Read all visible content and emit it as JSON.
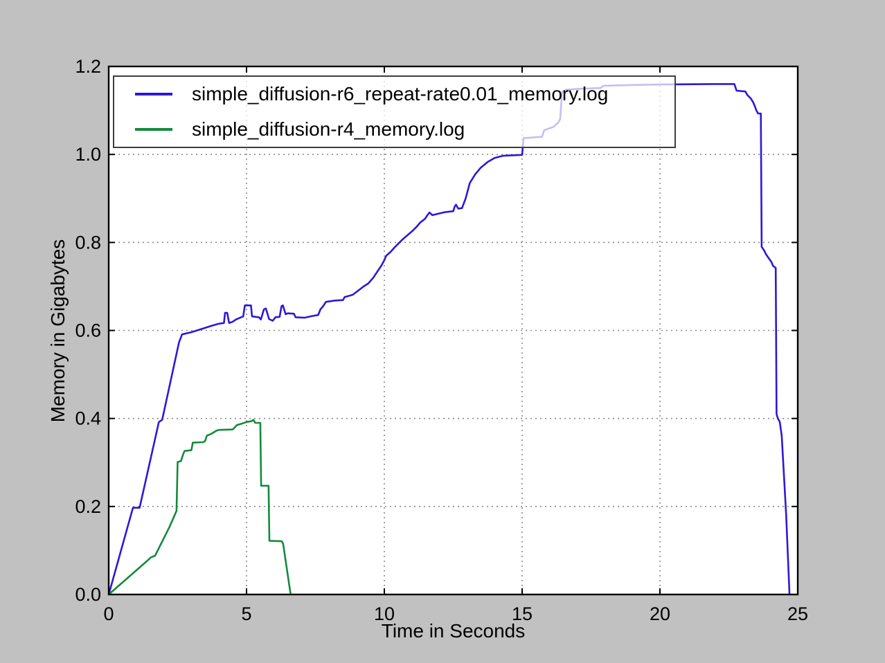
{
  "figure": {
    "background_color": "#c1c1c1",
    "plot_background_color": "#ffffff",
    "spine_color": "#000000",
    "grid_color": "#8a8a8a",
    "legend_border_color": "#3d3d3d"
  },
  "chart_data": {
    "type": "line",
    "title": "",
    "xlabel": "Time in Seconds",
    "ylabel": "Memory in Gigabytes",
    "xlim": [
      0,
      25
    ],
    "ylim": [
      0,
      1.2
    ],
    "xticks": {
      "values": [
        0,
        5,
        10,
        15,
        20,
        25
      ],
      "labels": [
        "0",
        "5",
        "10",
        "15",
        "20",
        "25"
      ]
    },
    "yticks": {
      "values": [
        0,
        0.2,
        0.4,
        0.6,
        0.8,
        1.0,
        1.2
      ],
      "labels": [
        "0.0",
        "0.2",
        "0.4",
        "0.6",
        "0.8",
        "1.0",
        "1.2"
      ]
    },
    "grid": "dotted",
    "legend_position": "upper left",
    "series": [
      {
        "name": "simple_diffusion-r6_repeat-rate0.01_memory.log",
        "color": "#2d18d8",
        "points": [
          [
            0,
            0
          ],
          [
            0.88,
            0.197
          ],
          [
            1.12,
            0.197
          ],
          [
            1.82,
            0.392
          ],
          [
            1.94,
            0.397
          ],
          [
            2.55,
            0.573
          ],
          [
            2.66,
            0.591
          ],
          [
            3.0,
            0.596
          ],
          [
            3.35,
            0.603
          ],
          [
            3.7,
            0.61
          ],
          [
            3.97,
            0.615
          ],
          [
            4.18,
            0.617
          ],
          [
            4.22,
            0.64
          ],
          [
            4.3,
            0.64
          ],
          [
            4.37,
            0.617
          ],
          [
            4.5,
            0.62
          ],
          [
            4.62,
            0.625
          ],
          [
            4.88,
            0.632
          ],
          [
            4.94,
            0.657
          ],
          [
            5.16,
            0.657
          ],
          [
            5.2,
            0.632
          ],
          [
            5.45,
            0.63
          ],
          [
            5.52,
            0.625
          ],
          [
            5.63,
            0.648
          ],
          [
            5.7,
            0.65
          ],
          [
            5.82,
            0.626
          ],
          [
            5.95,
            0.622
          ],
          [
            6.05,
            0.63
          ],
          [
            6.2,
            0.631
          ],
          [
            6.27,
            0.655
          ],
          [
            6.32,
            0.657
          ],
          [
            6.42,
            0.637
          ],
          [
            6.5,
            0.639
          ],
          [
            6.72,
            0.638
          ],
          [
            6.78,
            0.63
          ],
          [
            7.1,
            0.629
          ],
          [
            7.4,
            0.633
          ],
          [
            7.6,
            0.635
          ],
          [
            7.68,
            0.648
          ],
          [
            7.78,
            0.655
          ],
          [
            7.88,
            0.665
          ],
          [
            8.2,
            0.668
          ],
          [
            8.5,
            0.669
          ],
          [
            8.56,
            0.676
          ],
          [
            8.85,
            0.681
          ],
          [
            9.0,
            0.688
          ],
          [
            9.25,
            0.7
          ],
          [
            9.42,
            0.707
          ],
          [
            9.6,
            0.72
          ],
          [
            9.76,
            0.735
          ],
          [
            9.9,
            0.748
          ],
          [
            10.0,
            0.76
          ],
          [
            10.07,
            0.77
          ],
          [
            10.22,
            0.778
          ],
          [
            10.36,
            0.788
          ],
          [
            10.52,
            0.798
          ],
          [
            10.68,
            0.808
          ],
          [
            10.85,
            0.817
          ],
          [
            11.0,
            0.825
          ],
          [
            11.16,
            0.835
          ],
          [
            11.3,
            0.845
          ],
          [
            11.48,
            0.854
          ],
          [
            11.56,
            0.862
          ],
          [
            11.64,
            0.868
          ],
          [
            11.74,
            0.862
          ],
          [
            12.0,
            0.866
          ],
          [
            12.2,
            0.869
          ],
          [
            12.5,
            0.871
          ],
          [
            12.55,
            0.881
          ],
          [
            12.6,
            0.886
          ],
          [
            12.68,
            0.877
          ],
          [
            12.82,
            0.878
          ],
          [
            12.95,
            0.9
          ],
          [
            13.1,
            0.935
          ],
          [
            13.3,
            0.955
          ],
          [
            13.5,
            0.97
          ],
          [
            13.75,
            0.983
          ],
          [
            14.0,
            0.992
          ],
          [
            14.3,
            0.997
          ],
          [
            15.0,
            0.999
          ],
          [
            15.05,
            1.037
          ],
          [
            15.72,
            1.04
          ],
          [
            15.8,
            1.055
          ],
          [
            16.15,
            1.063
          ],
          [
            16.3,
            1.072
          ],
          [
            16.38,
            1.08
          ],
          [
            16.45,
            1.142
          ],
          [
            16.6,
            1.147
          ],
          [
            17.0,
            1.149
          ],
          [
            17.85,
            1.151
          ],
          [
            17.95,
            1.156
          ],
          [
            18.5,
            1.157
          ],
          [
            20.0,
            1.159
          ],
          [
            22.0,
            1.16
          ],
          [
            22.7,
            1.16
          ],
          [
            22.78,
            1.145
          ],
          [
            23.1,
            1.143
          ],
          [
            23.17,
            1.135
          ],
          [
            23.3,
            1.127
          ],
          [
            23.38,
            1.119
          ],
          [
            23.44,
            1.11
          ],
          [
            23.5,
            1.1
          ],
          [
            23.56,
            1.093
          ],
          [
            23.66,
            1.093
          ],
          [
            23.69,
            0.79
          ],
          [
            23.78,
            0.782
          ],
          [
            23.85,
            0.773
          ],
          [
            23.95,
            0.764
          ],
          [
            24.05,
            0.755
          ],
          [
            24.1,
            0.747
          ],
          [
            24.2,
            0.742
          ],
          [
            24.23,
            0.41
          ],
          [
            24.28,
            0.4
          ],
          [
            24.35,
            0.392
          ],
          [
            24.42,
            0.36
          ],
          [
            24.58,
            0.18
          ],
          [
            24.7,
            0
          ]
        ]
      },
      {
        "name": "simple_diffusion-r4_memory.log",
        "color": "#148a3c",
        "points": [
          [
            0,
            0
          ],
          [
            1.46,
            0.08
          ],
          [
            1.52,
            0.084
          ],
          [
            1.68,
            0.088
          ],
          [
            2.2,
            0.153
          ],
          [
            2.46,
            0.19
          ],
          [
            2.5,
            0.301
          ],
          [
            2.62,
            0.303
          ],
          [
            2.68,
            0.315
          ],
          [
            2.75,
            0.326
          ],
          [
            3.0,
            0.328
          ],
          [
            3.05,
            0.345
          ],
          [
            3.42,
            0.346
          ],
          [
            3.5,
            0.349
          ],
          [
            3.56,
            0.361
          ],
          [
            3.72,
            0.365
          ],
          [
            3.9,
            0.372
          ],
          [
            4.0,
            0.374
          ],
          [
            4.5,
            0.375
          ],
          [
            4.65,
            0.385
          ],
          [
            4.82,
            0.388
          ],
          [
            5.0,
            0.392
          ],
          [
            5.18,
            0.394
          ],
          [
            5.25,
            0.397
          ],
          [
            5.32,
            0.39
          ],
          [
            5.5,
            0.39
          ],
          [
            5.53,
            0.247
          ],
          [
            5.8,
            0.247
          ],
          [
            5.83,
            0.122
          ],
          [
            6.28,
            0.121
          ],
          [
            6.33,
            0.115
          ],
          [
            6.6,
            0
          ]
        ]
      }
    ]
  }
}
